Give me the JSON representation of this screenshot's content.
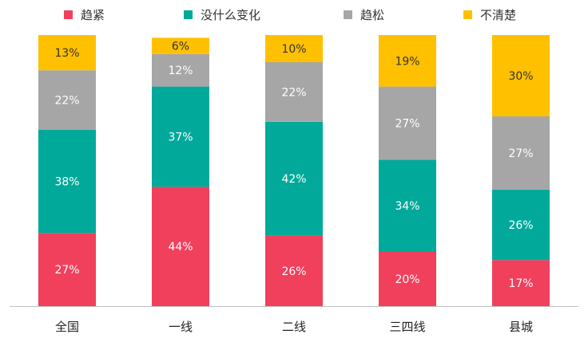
{
  "chart_data": {
    "type": "bar",
    "stacked": true,
    "categories": [
      "全国",
      "一线",
      "二线",
      "三四线",
      "县城"
    ],
    "series": [
      {
        "name": "趋紧",
        "color": "#F0405C",
        "values": [
          27,
          44,
          26,
          20,
          17
        ]
      },
      {
        "name": "没什么变化",
        "color": "#00A99A",
        "values": [
          38,
          37,
          42,
          34,
          26
        ]
      },
      {
        "name": "趋松",
        "color": "#A6A6A6",
        "values": [
          22,
          12,
          22,
          27,
          27
        ]
      },
      {
        "name": "不清楚",
        "color": "#FFC000",
        "values": [
          13,
          6,
          10,
          19,
          30
        ]
      }
    ],
    "value_suffix": "%",
    "label_colors": {
      "趋紧": "#ffffff",
      "没什么变化": "#ffffff",
      "趋松": "#ffffff",
      "不清楚": "#333333"
    },
    "ylim": [
      0,
      100
    ],
    "legend_position": "top",
    "grid": false,
    "axis_color": "#BFBFBF"
  }
}
